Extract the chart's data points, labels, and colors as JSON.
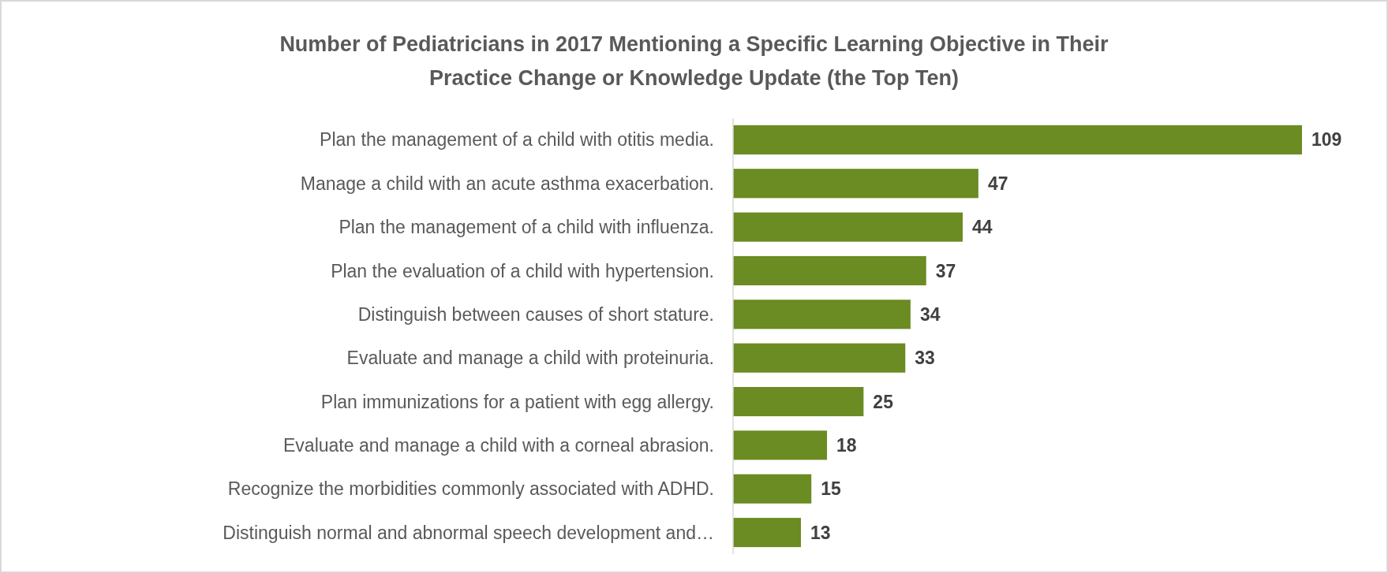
{
  "chart_data": {
    "type": "bar",
    "orientation": "horizontal",
    "title": "Number of Pediatricians in 2017 Mentioning a Specific Learning Objective in Their Practice Change or Knowledge Update (the Top Ten)",
    "categories": [
      "Plan the management of a child with otitis media.",
      "Manage a child with an acute asthma exacerbation.",
      "Plan the management of a child with influenza.",
      "Plan the evaluation of a child with hypertension.",
      "Distinguish between causes of short stature.",
      "Evaluate and manage a child with proteinuria.",
      "Plan immunizations for a patient with egg allergy.",
      "Evaluate and manage a child with a corneal abrasion.",
      "Recognize the morbidities commonly associated with ADHD.",
      "Distinguish normal and abnormal speech development and…"
    ],
    "values": [
      109,
      47,
      44,
      37,
      34,
      33,
      25,
      18,
      15,
      13
    ],
    "color": "#6b8b23",
    "data_labels": true
  }
}
